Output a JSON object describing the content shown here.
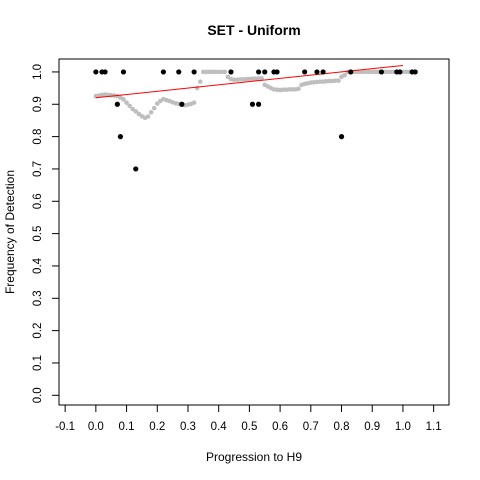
{
  "chart_data": {
    "type": "scatter",
    "title": "SET - Uniform",
    "xlabel": "Progression to H9",
    "ylabel": "Frequency of Detection",
    "xlim": [
      -0.12,
      1.15
    ],
    "ylim": [
      -0.03,
      1.04
    ],
    "xticks": [
      -0.1,
      0.0,
      0.1,
      0.2,
      0.3,
      0.4,
      0.5,
      0.6,
      0.7,
      0.8,
      0.9,
      1.0,
      1.1
    ],
    "yticks": [
      0.0,
      0.1,
      0.2,
      0.3,
      0.4,
      0.5,
      0.6,
      0.7,
      0.8,
      0.9,
      1.0
    ],
    "xtick_labels": [
      "-0.1",
      "0.0",
      "0.1",
      "0.2",
      "0.3",
      "0.4",
      "0.5",
      "0.6",
      "0.7",
      "0.8",
      "0.9",
      "1.0",
      "1.1"
    ],
    "ytick_labels": [
      "0.0",
      "0.1",
      "0.2",
      "0.3",
      "0.4",
      "0.5",
      "0.6",
      "0.7",
      "0.8",
      "0.9",
      "1.0"
    ],
    "grid": false,
    "colors": {
      "observed": "#000000",
      "smoothed": "#bebebe",
      "fit": "#ff0000"
    },
    "series": [
      {
        "role": "observed",
        "style": "black points",
        "points": [
          [
            0.0,
            1.0
          ],
          [
            0.02,
            1.0
          ],
          [
            0.03,
            1.0
          ],
          [
            0.07,
            0.9
          ],
          [
            0.08,
            0.8
          ],
          [
            0.09,
            1.0
          ],
          [
            0.13,
            0.7
          ],
          [
            0.22,
            1.0
          ],
          [
            0.27,
            1.0
          ],
          [
            0.28,
            0.9
          ],
          [
            0.32,
            1.0
          ],
          [
            0.44,
            1.0
          ],
          [
            0.51,
            0.9
          ],
          [
            0.53,
            0.9
          ],
          [
            0.53,
            1.0
          ],
          [
            0.55,
            1.0
          ],
          [
            0.58,
            1.0
          ],
          [
            0.59,
            1.0
          ],
          [
            0.68,
            1.0
          ],
          [
            0.72,
            1.0
          ],
          [
            0.74,
            1.0
          ],
          [
            0.8,
            0.8
          ],
          [
            0.83,
            1.0
          ],
          [
            0.93,
            1.0
          ],
          [
            0.98,
            1.0
          ],
          [
            0.99,
            1.0
          ],
          [
            1.03,
            1.0
          ],
          [
            1.04,
            1.0
          ]
        ]
      },
      {
        "role": "smoothed",
        "style": "grey points",
        "points": [
          [
            0.0,
            0.925
          ],
          [
            0.01,
            0.927
          ],
          [
            0.02,
            0.929
          ],
          [
            0.03,
            0.93
          ],
          [
            0.04,
            0.929
          ],
          [
            0.05,
            0.928
          ],
          [
            0.06,
            0.927
          ],
          [
            0.07,
            0.925
          ],
          [
            0.08,
            0.921
          ],
          [
            0.09,
            0.915
          ],
          [
            0.1,
            0.905
          ],
          [
            0.11,
            0.895
          ],
          [
            0.12,
            0.885
          ],
          [
            0.13,
            0.878
          ],
          [
            0.14,
            0.87
          ],
          [
            0.15,
            0.863
          ],
          [
            0.16,
            0.858
          ],
          [
            0.17,
            0.862
          ],
          [
            0.18,
            0.875
          ],
          [
            0.19,
            0.888
          ],
          [
            0.2,
            0.902
          ],
          [
            0.21,
            0.91
          ],
          [
            0.22,
            0.916
          ],
          [
            0.23,
            0.913
          ],
          [
            0.24,
            0.91
          ],
          [
            0.25,
            0.906
          ],
          [
            0.26,
            0.903
          ],
          [
            0.27,
            0.901
          ],
          [
            0.28,
            0.899
          ],
          [
            0.29,
            0.897
          ],
          [
            0.3,
            0.899
          ],
          [
            0.31,
            0.901
          ],
          [
            0.32,
            0.905
          ],
          [
            0.33,
            0.95
          ],
          [
            0.34,
            0.97
          ],
          [
            0.35,
            1.0
          ],
          [
            0.36,
            1.0
          ],
          [
            0.37,
            1.0
          ],
          [
            0.38,
            1.0
          ],
          [
            0.39,
            1.0
          ],
          [
            0.4,
            1.0
          ],
          [
            0.41,
            1.0
          ],
          [
            0.42,
            1.0
          ],
          [
            0.43,
            0.985
          ],
          [
            0.44,
            0.978
          ],
          [
            0.45,
            0.976
          ],
          [
            0.46,
            0.976
          ],
          [
            0.47,
            0.977
          ],
          [
            0.48,
            0.977
          ],
          [
            0.49,
            0.978
          ],
          [
            0.5,
            0.978
          ],
          [
            0.51,
            0.979
          ],
          [
            0.52,
            0.979
          ],
          [
            0.53,
            0.98
          ],
          [
            0.54,
            0.98
          ],
          [
            0.55,
            0.96
          ],
          [
            0.56,
            0.955
          ],
          [
            0.57,
            0.95
          ],
          [
            0.58,
            0.946
          ],
          [
            0.59,
            0.945
          ],
          [
            0.6,
            0.944
          ],
          [
            0.61,
            0.945
          ],
          [
            0.62,
            0.945
          ],
          [
            0.63,
            0.946
          ],
          [
            0.64,
            0.946
          ],
          [
            0.65,
            0.946
          ],
          [
            0.66,
            0.948
          ],
          [
            0.67,
            0.96
          ],
          [
            0.68,
            0.963
          ],
          [
            0.69,
            0.965
          ],
          [
            0.7,
            0.967
          ],
          [
            0.71,
            0.968
          ],
          [
            0.72,
            0.969
          ],
          [
            0.73,
            0.97
          ],
          [
            0.74,
            0.97
          ],
          [
            0.75,
            0.971
          ],
          [
            0.76,
            0.972
          ],
          [
            0.77,
            0.972
          ],
          [
            0.78,
            0.973
          ],
          [
            0.79,
            0.973
          ],
          [
            0.8,
            0.985
          ],
          [
            0.81,
            0.99
          ],
          [
            0.82,
            1.0
          ],
          [
            0.83,
            1.0
          ],
          [
            0.84,
            1.0
          ],
          [
            0.85,
            1.0
          ],
          [
            0.86,
            1.0
          ],
          [
            0.87,
            1.0
          ],
          [
            0.88,
            1.0
          ],
          [
            0.89,
            1.0
          ],
          [
            0.9,
            1.0
          ],
          [
            0.91,
            1.0
          ],
          [
            0.92,
            1.0
          ],
          [
            0.93,
            1.0
          ],
          [
            0.94,
            1.0
          ],
          [
            0.95,
            1.0
          ],
          [
            0.96,
            1.0
          ],
          [
            0.97,
            1.0
          ],
          [
            0.98,
            1.0
          ],
          [
            0.99,
            1.0
          ],
          [
            1.0,
            1.0
          ],
          [
            1.01,
            1.0
          ],
          [
            1.02,
            1.0
          ],
          [
            1.03,
            1.0
          ]
        ]
      },
      {
        "role": "fit",
        "style": "red line",
        "points": [
          [
            0.0,
            0.92
          ],
          [
            1.0,
            1.02
          ]
        ]
      }
    ]
  }
}
